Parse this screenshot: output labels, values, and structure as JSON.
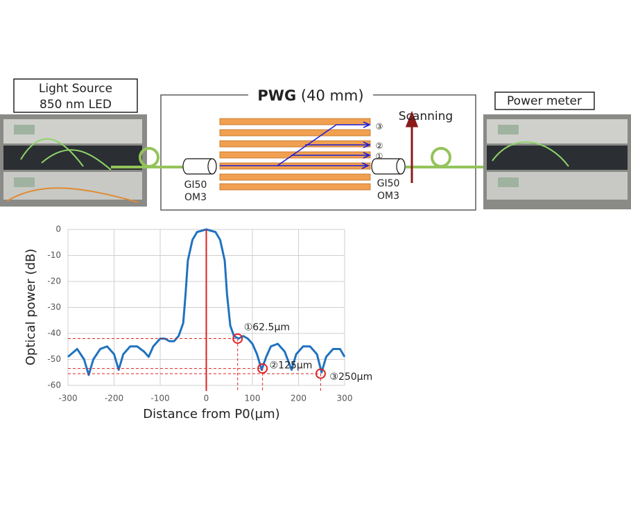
{
  "diagram": {
    "source_label": [
      "Light Source",
      "850 nm LED"
    ],
    "pwg_title": "PWG",
    "pwg_length": "(40 mm)",
    "scanning": "Scanning",
    "meter_label": "Power meter",
    "fiber_left": [
      "GI50",
      "OM3"
    ],
    "fiber_right": [
      "GI50",
      "OM3"
    ],
    "channels": [
      "①",
      "②",
      "③"
    ]
  },
  "chart_data": {
    "type": "line",
    "xlabel": "Distance from P0(µm)",
    "ylabel": "Optical power (dB)",
    "x": [
      -300,
      -280,
      -265,
      -255,
      -245,
      -230,
      -215,
      -200,
      -190,
      -180,
      -165,
      -150,
      -135,
      -125,
      -115,
      -100,
      -90,
      -80,
      -70,
      -60,
      -50,
      -45,
      -40,
      -30,
      -20,
      0,
      20,
      30,
      40,
      45,
      52,
      60,
      70,
      80,
      90,
      100,
      110,
      120,
      130,
      140,
      155,
      170,
      185,
      195,
      210,
      225,
      240,
      250,
      260,
      275,
      290,
      300
    ],
    "series": [
      {
        "name": "Optical power",
        "color": "#1f72c0",
        "values": [
          -49,
          -46,
          -50,
          -56,
          -50,
          -46,
          -45,
          -48,
          -54,
          -48,
          -45,
          -45,
          -47,
          -49,
          -45,
          -42,
          -42,
          -43,
          -43,
          -41,
          -36,
          -25,
          -12,
          -4,
          -1,
          0,
          -1,
          -4,
          -12,
          -25,
          -37,
          -41,
          -42,
          -41,
          -42,
          -44,
          -48,
          -54,
          -49,
          -45,
          -44,
          -47,
          -54,
          -48,
          -45,
          -45,
          -48,
          -55,
          -49,
          -46,
          -46,
          -49
        ]
      }
    ],
    "xlim": [
      -300,
      300
    ],
    "ylim": [
      -60,
      0
    ],
    "xticks": [
      -300,
      -200,
      -100,
      0,
      100,
      200,
      300
    ],
    "yticks": [
      0,
      -10,
      -20,
      -30,
      -40,
      -50,
      -60
    ],
    "grid": true,
    "vline": 0,
    "annotations": [
      {
        "text": "①62.5µm",
        "x": 68,
        "y": -42
      },
      {
        "text": "②125µm",
        "x": 122,
        "y": -53.5
      },
      {
        "text": "③250µm",
        "x": 248,
        "y": -55.5
      }
    ]
  }
}
